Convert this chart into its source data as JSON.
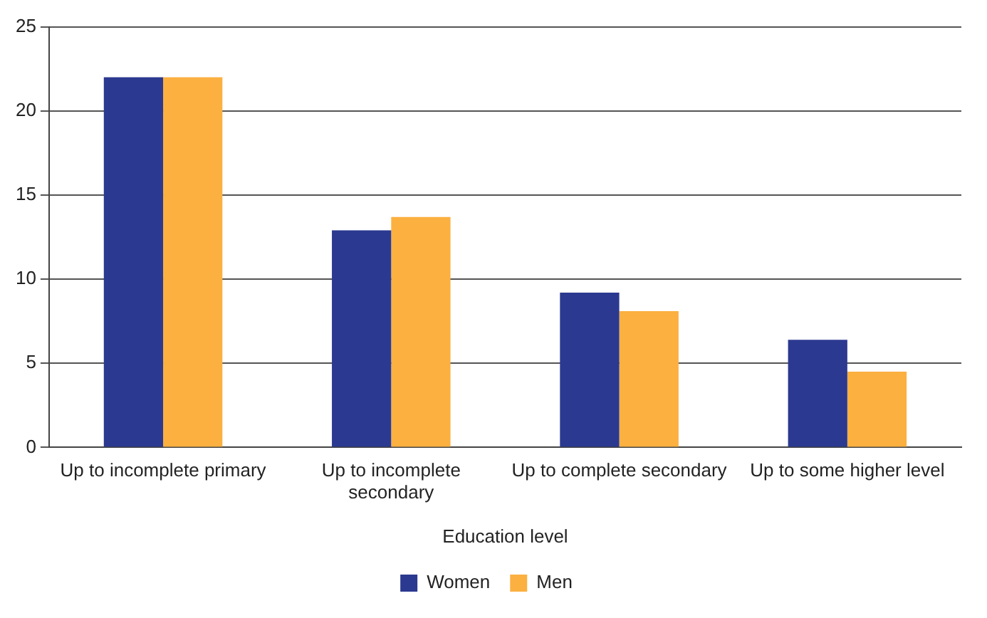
{
  "chart_data": {
    "type": "bar",
    "xlabel": "Education level",
    "categories": [
      "Up to incomplete primary",
      "Up to incomplete secondary",
      "Up to complete secondary",
      "Up to some higher level"
    ],
    "series": [
      {
        "name": "Women",
        "color": "#2b3990",
        "values": [
          22,
          12.9,
          9.2,
          6.4
        ]
      },
      {
        "name": "Men",
        "color": "#fbb040",
        "values": [
          22,
          13.7,
          8.1,
          4.5
        ]
      }
    ],
    "ylim": [
      0,
      25
    ],
    "yticks": [
      0,
      5,
      10,
      15,
      20,
      25
    ],
    "grid": "y",
    "legend": "bottom"
  }
}
